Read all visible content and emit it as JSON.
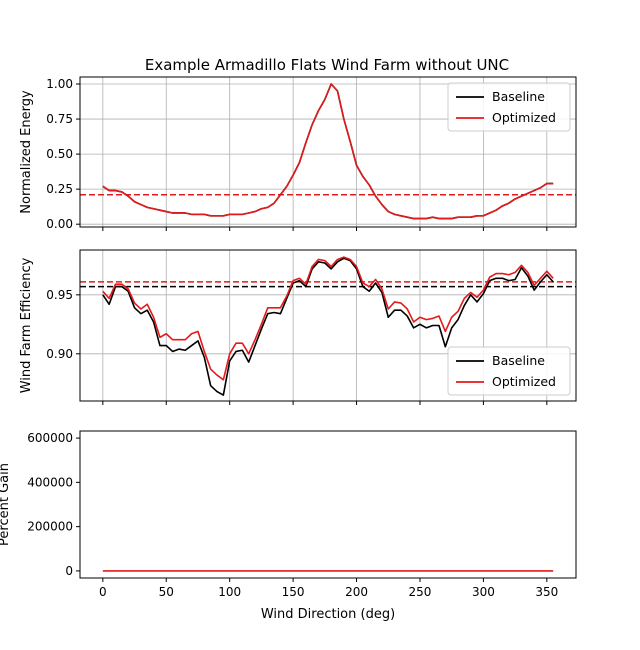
{
  "figure_title": "Example Armadillo Flats Wind Farm without UNC",
  "colors": {
    "baseline": "#000000",
    "optimized": "#e41a1c",
    "grid": "#b0b0b0"
  },
  "chart_data": [
    {
      "type": "line",
      "title": "Example Armadillo Flats Wind Farm without UNC",
      "xlabel": "",
      "ylabel": "Normalized Energy",
      "xlim": [
        -18,
        373
      ],
      "ylim": [
        -0.02,
        1.05
      ],
      "x_ticks": [
        0,
        50,
        100,
        150,
        200,
        250,
        300,
        350
      ],
      "y_ticks": [
        0.0,
        0.25,
        0.5,
        0.75,
        1.0
      ],
      "y_tick_labels": [
        "0.00",
        "0.25",
        "0.50",
        "0.75",
        "1.00"
      ],
      "show_x_tick_labels": false,
      "grid": true,
      "legend": {
        "loc": "upper right",
        "entries": [
          "Baseline",
          "Optimized"
        ]
      },
      "x": [
        0,
        5,
        10,
        15,
        20,
        25,
        30,
        35,
        40,
        45,
        50,
        55,
        60,
        65,
        70,
        75,
        80,
        85,
        90,
        95,
        100,
        105,
        110,
        115,
        120,
        125,
        130,
        135,
        140,
        145,
        150,
        155,
        160,
        165,
        170,
        175,
        180,
        185,
        190,
        195,
        200,
        205,
        210,
        215,
        220,
        225,
        230,
        235,
        240,
        245,
        250,
        255,
        260,
        265,
        270,
        275,
        280,
        285,
        290,
        295,
        300,
        305,
        310,
        315,
        320,
        325,
        330,
        335,
        340,
        345,
        350,
        355
      ],
      "series": [
        {
          "name": "Baseline",
          "color": "#000000",
          "values": [
            0.27,
            0.24,
            0.24,
            0.23,
            0.2,
            0.16,
            0.14,
            0.12,
            0.11,
            0.1,
            0.09,
            0.08,
            0.08,
            0.08,
            0.07,
            0.07,
            0.07,
            0.06,
            0.06,
            0.06,
            0.07,
            0.07,
            0.07,
            0.08,
            0.09,
            0.11,
            0.12,
            0.15,
            0.21,
            0.27,
            0.35,
            0.44,
            0.58,
            0.71,
            0.81,
            0.89,
            1.0,
            0.95,
            0.75,
            0.59,
            0.42,
            0.34,
            0.28,
            0.2,
            0.14,
            0.09,
            0.07,
            0.06,
            0.05,
            0.04,
            0.04,
            0.04,
            0.05,
            0.04,
            0.04,
            0.04,
            0.05,
            0.05,
            0.05,
            0.06,
            0.06,
            0.08,
            0.1,
            0.13,
            0.15,
            0.18,
            0.2,
            0.22,
            0.24,
            0.26,
            0.29,
            0.29
          ]
        },
        {
          "name": "Optimized",
          "color": "#e41a1c",
          "values": [
            0.27,
            0.24,
            0.24,
            0.23,
            0.2,
            0.16,
            0.14,
            0.12,
            0.11,
            0.1,
            0.09,
            0.08,
            0.08,
            0.08,
            0.07,
            0.07,
            0.07,
            0.06,
            0.06,
            0.06,
            0.07,
            0.07,
            0.07,
            0.08,
            0.09,
            0.11,
            0.12,
            0.15,
            0.21,
            0.27,
            0.35,
            0.44,
            0.58,
            0.71,
            0.81,
            0.89,
            1.0,
            0.95,
            0.75,
            0.59,
            0.42,
            0.34,
            0.28,
            0.2,
            0.14,
            0.09,
            0.07,
            0.06,
            0.05,
            0.04,
            0.04,
            0.04,
            0.05,
            0.04,
            0.04,
            0.04,
            0.05,
            0.05,
            0.05,
            0.06,
            0.06,
            0.08,
            0.1,
            0.13,
            0.15,
            0.18,
            0.2,
            0.22,
            0.24,
            0.26,
            0.29,
            0.29
          ]
        }
      ],
      "hlines": [
        {
          "name": "Baseline",
          "color": "#000000",
          "value": 0.21,
          "style": "dashed"
        },
        {
          "name": "Optimized",
          "color": "#e41a1c",
          "value": 0.21,
          "style": "dashed"
        }
      ]
    },
    {
      "type": "line",
      "title": "",
      "xlabel": "",
      "ylabel": "Wind Farm Efficiency",
      "xlim": [
        -18,
        373
      ],
      "ylim": [
        0.86,
        0.988
      ],
      "x_ticks": [
        0,
        50,
        100,
        150,
        200,
        250,
        300,
        350
      ],
      "y_ticks": [
        0.9,
        0.95
      ],
      "y_tick_labels": [
        "0.90",
        "0.95"
      ],
      "show_x_tick_labels": false,
      "grid": true,
      "legend": {
        "loc": "lower right",
        "entries": [
          "Baseline",
          "Optimized"
        ]
      },
      "x": [
        0,
        5,
        10,
        15,
        20,
        25,
        30,
        35,
        40,
        45,
        50,
        55,
        60,
        65,
        70,
        75,
        80,
        85,
        90,
        95,
        100,
        105,
        110,
        115,
        120,
        125,
        130,
        135,
        140,
        145,
        150,
        155,
        160,
        165,
        170,
        175,
        180,
        185,
        190,
        195,
        200,
        205,
        210,
        215,
        220,
        225,
        230,
        235,
        240,
        245,
        250,
        255,
        260,
        265,
        270,
        275,
        280,
        285,
        290,
        295,
        300,
        305,
        310,
        315,
        320,
        325,
        330,
        335,
        340,
        345,
        350,
        355
      ],
      "series": [
        {
          "name": "Baseline",
          "color": "#000000",
          "values": [
            0.95,
            0.942,
            0.957,
            0.957,
            0.953,
            0.939,
            0.934,
            0.937,
            0.927,
            0.907,
            0.907,
            0.902,
            0.904,
            0.903,
            0.907,
            0.911,
            0.897,
            0.873,
            0.868,
            0.865,
            0.894,
            0.902,
            0.903,
            0.893,
            0.907,
            0.921,
            0.934,
            0.935,
            0.934,
            0.947,
            0.96,
            0.962,
            0.957,
            0.972,
            0.978,
            0.977,
            0.972,
            0.978,
            0.981,
            0.979,
            0.972,
            0.957,
            0.953,
            0.96,
            0.952,
            0.931,
            0.937,
            0.937,
            0.932,
            0.922,
            0.925,
            0.922,
            0.924,
            0.924,
            0.906,
            0.922,
            0.929,
            0.941,
            0.95,
            0.944,
            0.951,
            0.962,
            0.964,
            0.964,
            0.962,
            0.963,
            0.973,
            0.966,
            0.954,
            0.961,
            0.967,
            0.961
          ]
        },
        {
          "name": "Optimized",
          "color": "#e41a1c",
          "values": [
            0.953,
            0.947,
            0.959,
            0.959,
            0.955,
            0.943,
            0.938,
            0.942,
            0.931,
            0.914,
            0.917,
            0.912,
            0.912,
            0.912,
            0.917,
            0.919,
            0.902,
            0.887,
            0.882,
            0.878,
            0.9,
            0.909,
            0.909,
            0.9,
            0.912,
            0.925,
            0.939,
            0.939,
            0.939,
            0.949,
            0.962,
            0.964,
            0.959,
            0.974,
            0.98,
            0.979,
            0.974,
            0.98,
            0.982,
            0.98,
            0.974,
            0.96,
            0.957,
            0.963,
            0.955,
            0.938,
            0.944,
            0.943,
            0.938,
            0.927,
            0.931,
            0.929,
            0.93,
            0.932,
            0.919,
            0.931,
            0.936,
            0.947,
            0.952,
            0.948,
            0.954,
            0.965,
            0.968,
            0.968,
            0.967,
            0.969,
            0.975,
            0.969,
            0.958,
            0.964,
            0.97,
            0.964
          ]
        }
      ],
      "hlines": [
        {
          "name": "Baseline",
          "color": "#000000",
          "value": 0.957,
          "style": "dashed"
        },
        {
          "name": "Optimized",
          "color": "#e41a1c",
          "value": 0.961,
          "style": "dashed"
        }
      ]
    },
    {
      "type": "line",
      "title": "",
      "xlabel": "Wind Direction (deg)",
      "ylabel": "Percent Gain",
      "xlim": [
        -18,
        373
      ],
      "ylim": [
        -32000,
        632000
      ],
      "x_ticks": [
        0,
        50,
        100,
        150,
        200,
        250,
        300,
        350
      ],
      "x_tick_labels": [
        "0",
        "50",
        "100",
        "150",
        "200",
        "250",
        "300",
        "350"
      ],
      "y_ticks": [
        0,
        200000,
        400000,
        600000
      ],
      "y_tick_labels": [
        "0",
        "200000",
        "400000",
        "600000"
      ],
      "show_x_tick_labels": true,
      "grid": false,
      "x": [
        0,
        355
      ],
      "series": [
        {
          "name": "Percent Gain",
          "color": "#e41a1c",
          "values": [
            0,
            0
          ]
        }
      ]
    }
  ]
}
